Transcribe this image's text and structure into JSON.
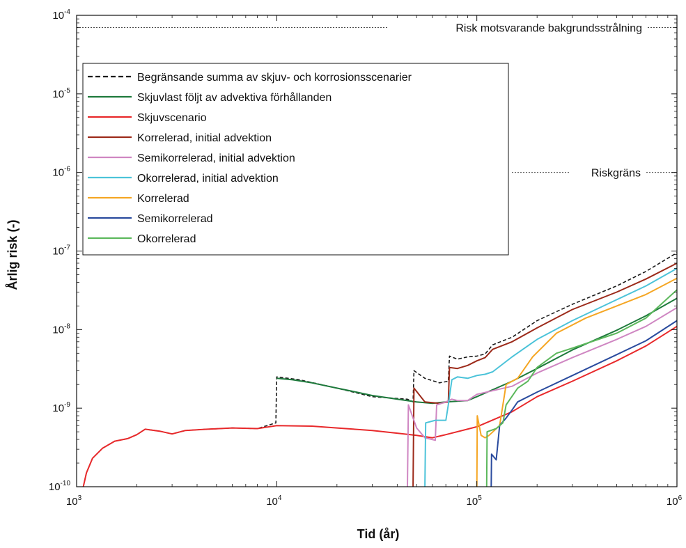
{
  "chart_data": {
    "type": "line",
    "xlabel": "Tid (år)",
    "ylabel": "Årlig risk (-)",
    "xscale": "log",
    "yscale": "log",
    "xlim": [
      1000,
      1000000
    ],
    "ylim": [
      1e-10,
      0.0001
    ],
    "x_ticks": [
      {
        "base": "10",
        "exp": "3"
      },
      {
        "base": "10",
        "exp": "4"
      },
      {
        "base": "10",
        "exp": "5"
      },
      {
        "base": "10",
        "exp": "6"
      }
    ],
    "y_ticks": [
      {
        "base": "10",
        "exp": "-10"
      },
      {
        "base": "10",
        "exp": "-9"
      },
      {
        "base": "10",
        "exp": "-8"
      },
      {
        "base": "10",
        "exp": "-7"
      },
      {
        "base": "10",
        "exp": "-6"
      },
      {
        "base": "10",
        "exp": "-5"
      },
      {
        "base": "10",
        "exp": "-4"
      }
    ],
    "grid": false,
    "legend_position": "upper-left",
    "reference_lines": [
      {
        "label": "Risk motsvarande bakgrundsstrålning",
        "y": 7e-05
      },
      {
        "label": "Riskgräns",
        "y": 1e-06
      }
    ],
    "series": [
      {
        "name": "Begränsande summa av skjuv- och korrosionsscenarier",
        "color": "#1a1a1a",
        "dash": true,
        "points": [
          [
            1080,
            1e-10
          ],
          [
            1120,
            1.5e-10
          ],
          [
            1200,
            2.3e-10
          ],
          [
            1350,
            3.1e-10
          ],
          [
            1550,
            3.8e-10
          ],
          [
            1800,
            4.1e-10
          ],
          [
            2000,
            4.6e-10
          ],
          [
            2200,
            5.4e-10
          ],
          [
            2600,
            5.1e-10
          ],
          [
            3000,
            4.7e-10
          ],
          [
            3500,
            5.2e-10
          ],
          [
            4500,
            5.4e-10
          ],
          [
            6000,
            5.6e-10
          ],
          [
            8000,
            5.5e-10
          ],
          [
            9900,
            6.5e-10
          ],
          [
            10000,
            2.5e-09
          ],
          [
            13000,
            2.3e-09
          ],
          [
            20000,
            1.8e-09
          ],
          [
            30000,
            1.4e-09
          ],
          [
            45000,
            1.3e-09
          ],
          [
            48000,
            1.2e-09
          ],
          [
            48500,
            3e-09
          ],
          [
            55000,
            2.4e-09
          ],
          [
            65000,
            2.1e-09
          ],
          [
            72000,
            2.2e-09
          ],
          [
            73000,
            4.6e-09
          ],
          [
            80000,
            4.2e-09
          ],
          [
            90000,
            4.5e-09
          ],
          [
            100000,
            4.6e-09
          ],
          [
            110000,
            4.9e-09
          ],
          [
            120000,
            6.4e-09
          ],
          [
            150000,
            8e-09
          ],
          [
            200000,
            1.3e-08
          ],
          [
            300000,
            2.1e-08
          ],
          [
            500000,
            3.6e-08
          ],
          [
            700000,
            5.5e-08
          ],
          [
            1000000,
            9.5e-08
          ]
        ]
      },
      {
        "name": "Skjuvlast följt av advektiva förhållanden",
        "color": "#1e7a3c",
        "dash": false,
        "points": [
          [
            10000,
            2.4e-09
          ],
          [
            12000,
            2.3e-09
          ],
          [
            15000,
            2.1e-09
          ],
          [
            20000,
            1.8e-09
          ],
          [
            25000,
            1.6e-09
          ],
          [
            30000,
            1.45e-09
          ],
          [
            40000,
            1.3e-09
          ],
          [
            50000,
            1.2e-09
          ],
          [
            60000,
            1.15e-09
          ],
          [
            70000,
            1.2e-09
          ],
          [
            90000,
            1.25e-09
          ],
          [
            100000,
            1.4e-09
          ],
          [
            150000,
            2.2e-09
          ],
          [
            200000,
            3.2e-09
          ],
          [
            300000,
            5.5e-09
          ],
          [
            500000,
            9.8e-09
          ],
          [
            700000,
            1.5e-08
          ],
          [
            1000000,
            2.5e-08
          ]
        ]
      },
      {
        "name": "Skjuvscenario",
        "color": "#e8292b",
        "dash": false,
        "points": [
          [
            1080,
            1e-10
          ],
          [
            1120,
            1.5e-10
          ],
          [
            1200,
            2.3e-10
          ],
          [
            1350,
            3.1e-10
          ],
          [
            1550,
            3.8e-10
          ],
          [
            1800,
            4.1e-10
          ],
          [
            2000,
            4.6e-10
          ],
          [
            2200,
            5.4e-10
          ],
          [
            2600,
            5.1e-10
          ],
          [
            3000,
            4.7e-10
          ],
          [
            3500,
            5.2e-10
          ],
          [
            4500,
            5.4e-10
          ],
          [
            6000,
            5.6e-10
          ],
          [
            8000,
            5.5e-10
          ],
          [
            10000,
            6e-10
          ],
          [
            15000,
            5.9e-10
          ],
          [
            20000,
            5.6e-10
          ],
          [
            30000,
            5.2e-10
          ],
          [
            40000,
            4.8e-10
          ],
          [
            50000,
            4.5e-10
          ],
          [
            60000,
            4.2e-10
          ],
          [
            70000,
            4.6e-10
          ],
          [
            100000,
            5.8e-10
          ],
          [
            150000,
            9e-10
          ],
          [
            200000,
            1.4e-09
          ],
          [
            300000,
            2.2e-09
          ],
          [
            500000,
            4e-09
          ],
          [
            700000,
            6.2e-09
          ],
          [
            1000000,
            1.1e-08
          ]
        ]
      },
      {
        "name": "Korrelerad, initial advektion",
        "color": "#9c2a1a",
        "dash": false,
        "points": [
          [
            48000,
            1e-10
          ],
          [
            48500,
            1.8e-09
          ],
          [
            55000,
            1.2e-09
          ],
          [
            65000,
            1.15e-09
          ],
          [
            72000,
            1.2e-09
          ],
          [
            73000,
            3.3e-09
          ],
          [
            80000,
            3.2e-09
          ],
          [
            90000,
            3.5e-09
          ],
          [
            100000,
            4e-09
          ],
          [
            110000,
            4.4e-09
          ],
          [
            120000,
            5.6e-09
          ],
          [
            150000,
            7e-09
          ],
          [
            200000,
            1.05e-08
          ],
          [
            300000,
            1.8e-08
          ],
          [
            500000,
            3e-08
          ],
          [
            700000,
            4.4e-08
          ],
          [
            1000000,
            7e-08
          ]
        ]
      },
      {
        "name": "Semikorrelerad, initial advektion",
        "color": "#cf86c2",
        "dash": false,
        "points": [
          [
            45000,
            1e-10
          ],
          [
            45500,
            1.1e-09
          ],
          [
            50000,
            5.6e-10
          ],
          [
            55000,
            4.2e-10
          ],
          [
            62000,
            3.9e-10
          ],
          [
            63000,
            1.1e-09
          ],
          [
            70000,
            1.2e-09
          ],
          [
            75000,
            1.3e-09
          ],
          [
            80000,
            1.25e-09
          ],
          [
            90000,
            1.25e-09
          ],
          [
            100000,
            1.5e-09
          ],
          [
            150000,
            1.9e-09
          ],
          [
            200000,
            2.8e-09
          ],
          [
            300000,
            4.4e-09
          ],
          [
            500000,
            7.5e-09
          ],
          [
            700000,
            1.1e-08
          ],
          [
            1000000,
            1.9e-08
          ]
        ]
      },
      {
        "name": "Okorrelerad, initial advektion",
        "color": "#4cc3d9",
        "dash": false,
        "points": [
          [
            55000,
            1e-10
          ],
          [
            55500,
            6.5e-10
          ],
          [
            62000,
            7e-10
          ],
          [
            70000,
            7e-10
          ],
          [
            72000,
            1.1e-09
          ],
          [
            75000,
            2.3e-09
          ],
          [
            80000,
            2.5e-09
          ],
          [
            90000,
            2.4e-09
          ],
          [
            100000,
            2.6e-09
          ],
          [
            110000,
            2.7e-09
          ],
          [
            120000,
            2.9e-09
          ],
          [
            150000,
            4.5e-09
          ],
          [
            200000,
            7.5e-09
          ],
          [
            300000,
            1.3e-08
          ],
          [
            500000,
            2.4e-08
          ],
          [
            700000,
            3.6e-08
          ],
          [
            1000000,
            6e-08
          ]
        ]
      },
      {
        "name": "Korrelerad",
        "color": "#f5a623",
        "dash": false,
        "points": [
          [
            100000,
            1e-10
          ],
          [
            100500,
            8e-10
          ],
          [
            105000,
            4.5e-10
          ],
          [
            110000,
            4.2e-10
          ],
          [
            115000,
            4.5e-10
          ],
          [
            130000,
            6e-10
          ],
          [
            140000,
            2e-09
          ],
          [
            160000,
            2.4e-09
          ],
          [
            190000,
            4.5e-09
          ],
          [
            250000,
            9e-09
          ],
          [
            350000,
            1.4e-08
          ],
          [
            500000,
            2e-08
          ],
          [
            700000,
            2.8e-08
          ],
          [
            1000000,
            4.5e-08
          ]
        ]
      },
      {
        "name": "Semikorrelerad",
        "color": "#2a4b9e",
        "dash": false,
        "points": [
          [
            118000,
            1e-10
          ],
          [
            118500,
            2.6e-10
          ],
          [
            125000,
            2.2e-10
          ],
          [
            130000,
            6e-10
          ],
          [
            140000,
            7.5e-10
          ],
          [
            150000,
            9.5e-10
          ],
          [
            160000,
            1.2e-09
          ],
          [
            200000,
            1.6e-09
          ],
          [
            300000,
            2.6e-09
          ],
          [
            500000,
            4.8e-09
          ],
          [
            700000,
            7.2e-09
          ],
          [
            1000000,
            1.3e-08
          ]
        ]
      },
      {
        "name": "Okorrelerad",
        "color": "#5cb85c",
        "dash": false,
        "points": [
          [
            112000,
            1e-10
          ],
          [
            112500,
            5e-10
          ],
          [
            125000,
            5.5e-10
          ],
          [
            135000,
            6.5e-10
          ],
          [
            140000,
            1.1e-09
          ],
          [
            160000,
            1.8e-09
          ],
          [
            180000,
            2.2e-09
          ],
          [
            200000,
            3.3e-09
          ],
          [
            250000,
            5e-09
          ],
          [
            300000,
            5.8e-09
          ],
          [
            500000,
            9e-09
          ],
          [
            700000,
            1.4e-08
          ],
          [
            1000000,
            3.2e-08
          ]
        ]
      }
    ]
  }
}
